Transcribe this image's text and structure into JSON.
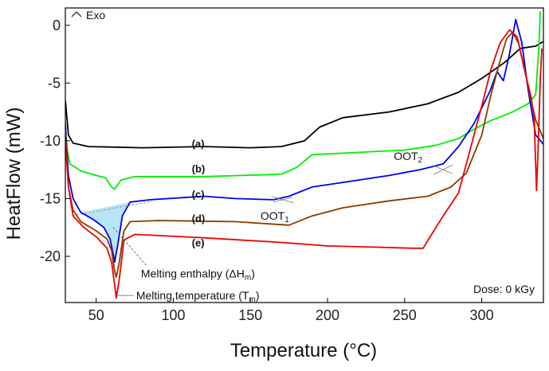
{
  "chart_data": {
    "type": "line",
    "title": "",
    "xlabel": "Temperature (°C)",
    "ylabel": "HeatFlow (mW)",
    "xlim": [
      30,
      340
    ],
    "ylim": [
      -24,
      1.5
    ],
    "x_ticks": [
      50,
      100,
      150,
      200,
      250,
      300
    ],
    "y_ticks": [
      0,
      -5,
      -10,
      -15,
      -20
    ],
    "x_tick_labels": [
      "50",
      "100",
      "150",
      "200",
      "250",
      "300"
    ],
    "y_tick_labels": [
      "0",
      "-5",
      "-10",
      "-15",
      "-20"
    ],
    "legend_corner": "Exo",
    "dose_label": "Dose: 0 kGy",
    "series": [
      {
        "name": "(a)",
        "color": "#000000",
        "points": [
          [
            30,
            -6.5
          ],
          [
            32,
            -9.5
          ],
          [
            35,
            -10.2
          ],
          [
            45,
            -10.5
          ],
          [
            80,
            -10.6
          ],
          [
            120,
            -10.5
          ],
          [
            150,
            -10.6
          ],
          [
            170,
            -10.5
          ],
          [
            185,
            -10.0
          ],
          [
            195,
            -8.8
          ],
          [
            210,
            -8.0
          ],
          [
            240,
            -7.5
          ],
          [
            265,
            -6.8
          ],
          [
            285,
            -5.8
          ],
          [
            300,
            -4.6
          ],
          [
            315,
            -3.2
          ],
          [
            325,
            -2.0
          ],
          [
            335,
            -1.8
          ],
          [
            340,
            -1.4
          ]
        ]
      },
      {
        "name": "(b)",
        "color": "#00ee00",
        "points": [
          [
            30,
            -10.0
          ],
          [
            33,
            -12.0
          ],
          [
            40,
            -12.6
          ],
          [
            50,
            -13.0
          ],
          [
            56,
            -13.2
          ],
          [
            60,
            -14.0
          ],
          [
            62,
            -14.2
          ],
          [
            66,
            -13.4
          ],
          [
            75,
            -13.1
          ],
          [
            120,
            -13.1
          ],
          [
            170,
            -12.9
          ],
          [
            180,
            -12.3
          ],
          [
            190,
            -11.2
          ],
          [
            220,
            -11.0
          ],
          [
            250,
            -10.8
          ],
          [
            270,
            -10.4
          ],
          [
            285,
            -9.8
          ],
          [
            295,
            -9.0
          ],
          [
            305,
            -8.3
          ],
          [
            320,
            -7.5
          ],
          [
            330,
            -6.8
          ],
          [
            335,
            -6.0
          ],
          [
            337,
            -2.0
          ],
          [
            338,
            1.2
          ]
        ]
      },
      {
        "name": "(c)",
        "color": "#0000ee",
        "points": [
          [
            30,
            -8.5
          ],
          [
            32,
            -13.0
          ],
          [
            35,
            -15.0
          ],
          [
            40,
            -16.2
          ],
          [
            48,
            -16.8
          ],
          [
            55,
            -17.5
          ],
          [
            59,
            -18.5
          ],
          [
            61,
            -19.8
          ],
          [
            62,
            -20.5
          ],
          [
            64,
            -19.0
          ],
          [
            67,
            -16.5
          ],
          [
            72,
            -15.3
          ],
          [
            85,
            -15.1
          ],
          [
            120,
            -14.8
          ],
          [
            140,
            -15.0
          ],
          [
            165,
            -15.1
          ],
          [
            175,
            -14.8
          ],
          [
            190,
            -14.0
          ],
          [
            210,
            -13.6
          ],
          [
            240,
            -13.0
          ],
          [
            260,
            -12.5
          ],
          [
            275,
            -12.0
          ],
          [
            285,
            -10.5
          ],
          [
            295,
            -8.5
          ],
          [
            305,
            -5.8
          ],
          [
            310,
            -4.0
          ],
          [
            314,
            -4.8
          ],
          [
            318,
            -2.5
          ],
          [
            322,
            0.5
          ],
          [
            326,
            -1.5
          ],
          [
            330,
            -5.5
          ],
          [
            335,
            -9.5
          ],
          [
            340,
            -10.3
          ]
        ]
      },
      {
        "name": "(d)",
        "color": "#8b3a00",
        "points": [
          [
            30,
            -9.0
          ],
          [
            32,
            -14.0
          ],
          [
            35,
            -16.0
          ],
          [
            40,
            -17.0
          ],
          [
            50,
            -17.8
          ],
          [
            57,
            -18.5
          ],
          [
            60,
            -19.5
          ],
          [
            62,
            -21.3
          ],
          [
            63,
            -21.8
          ],
          [
            65,
            -20.5
          ],
          [
            68,
            -17.8
          ],
          [
            72,
            -17.0
          ],
          [
            90,
            -16.9
          ],
          [
            140,
            -17.0
          ],
          [
            175,
            -17.3
          ],
          [
            190,
            -16.5
          ],
          [
            210,
            -15.8
          ],
          [
            240,
            -15.2
          ],
          [
            265,
            -14.8
          ],
          [
            280,
            -14.0
          ],
          [
            290,
            -12.8
          ],
          [
            300,
            -9.5
          ],
          [
            306,
            -6.0
          ],
          [
            311,
            -3.5
          ],
          [
            316,
            -1.2
          ],
          [
            320,
            -0.6
          ],
          [
            324,
            -1.6
          ],
          [
            328,
            -4.0
          ],
          [
            332,
            -6.5
          ],
          [
            335,
            -8.2
          ],
          [
            340,
            -9.8
          ]
        ]
      },
      {
        "name": "(e)",
        "color": "#ee0000",
        "points": [
          [
            30,
            -10.0
          ],
          [
            32,
            -14.0
          ],
          [
            35,
            -16.5
          ],
          [
            42,
            -17.5
          ],
          [
            50,
            -18.3
          ],
          [
            57,
            -19.3
          ],
          [
            60,
            -20.5
          ],
          [
            62,
            -22.5
          ],
          [
            63,
            -23.6
          ],
          [
            65,
            -22.0
          ],
          [
            68,
            -18.6
          ],
          [
            75,
            -18.1
          ],
          [
            120,
            -18.4
          ],
          [
            170,
            -18.8
          ],
          [
            200,
            -19.1
          ],
          [
            230,
            -19.2
          ],
          [
            255,
            -19.3
          ],
          [
            262,
            -19.3
          ],
          [
            268,
            -18.0
          ],
          [
            275,
            -16.5
          ],
          [
            285,
            -14.5
          ],
          [
            292,
            -11.0
          ],
          [
            300,
            -7.0
          ],
          [
            306,
            -3.8
          ],
          [
            312,
            -1.5
          ],
          [
            318,
            -0.4
          ],
          [
            323,
            -1.0
          ],
          [
            328,
            -4.0
          ],
          [
            332,
            -6.2
          ],
          [
            334,
            -8.0
          ],
          [
            335.5,
            -14.3
          ],
          [
            336.5,
            -11.0
          ],
          [
            338,
            -4.5
          ],
          [
            339,
            -2.0
          ]
        ]
      }
    ],
    "curve_labels": [
      {
        "text": "(a)",
        "x": 112,
        "y": -10.2
      },
      {
        "text": "(b)",
        "x": 112,
        "y": -12.4
      },
      {
        "text": "(c)",
        "x": 112,
        "y": -14.6
      },
      {
        "text": "(d)",
        "x": 112,
        "y": -16.7
      },
      {
        "text": "(e)",
        "x": 112,
        "y": -18.8
      }
    ],
    "annotations": {
      "oot1": {
        "text": "OOT",
        "sub": "1",
        "x": 171,
        "y": -15.1
      },
      "oot2": {
        "text": "OOT",
        "sub": "2",
        "x": 275,
        "y": -12.5
      },
      "enthalpy": {
        "text": "Melting enthalpy (ΔH",
        "sub": "m",
        "tail": ")",
        "x": 62,
        "y": -17.5
      },
      "melting_temp": {
        "text": "Melting temperature (T",
        "sub": "m",
        "tail": ")",
        "x": 63,
        "y": -23.6
      }
    }
  }
}
